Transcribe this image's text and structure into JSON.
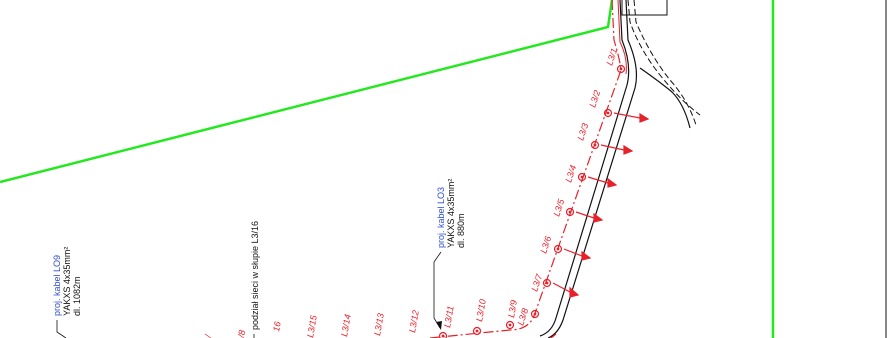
{
  "colors": {
    "boundary": "#22e81e",
    "proposed_line": "#e8202a",
    "cable_text": "#2f4fd0",
    "ink": "#111111"
  },
  "cable_lo9": {
    "name": "proj. kabel LO9",
    "type": "YAKXS 4x35mm²",
    "length": "dl. 1082m"
  },
  "cable_lo3": {
    "name": "proj. kabel LO3",
    "type": "YAKXS 4x35mm²",
    "length": "dl. 880m"
  },
  "split_note": "podział sieci w słupie L3/16",
  "poles": [
    "L3/1",
    "L3/2",
    "L3/3",
    "L3/4",
    "L3/5",
    "L3/6",
    "L3/7",
    "L3/8",
    "L3/9",
    "L3/10",
    "L3/11",
    "L3/12",
    "L3/13",
    "L3/14",
    "L3/15",
    "16",
    "/8",
    "/"
  ]
}
